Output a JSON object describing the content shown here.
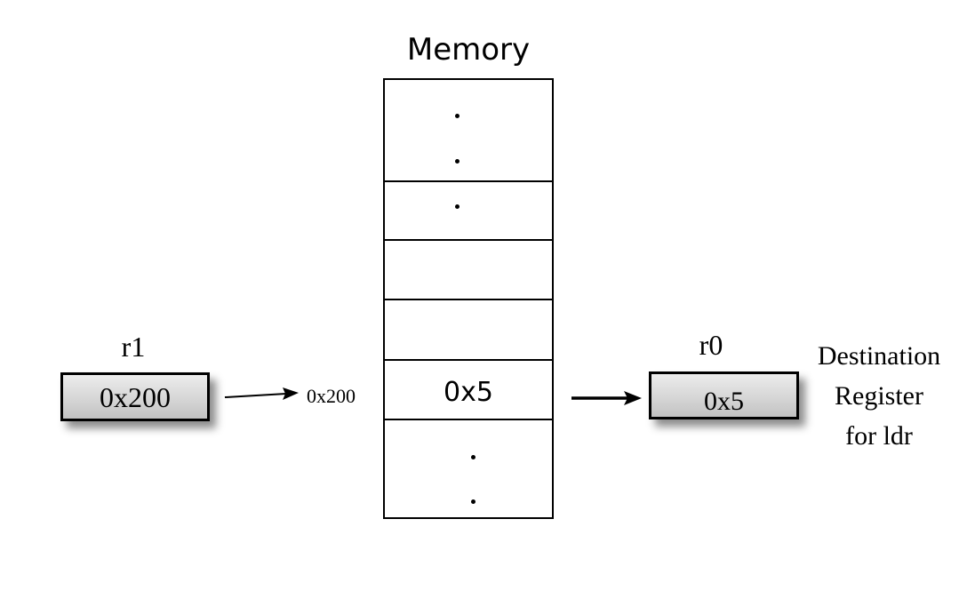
{
  "memory": {
    "title": "Memory",
    "highlighted_cell_value": "0x5"
  },
  "registers": {
    "r1": {
      "name": "r1",
      "value": "0x200"
    },
    "r0": {
      "name": "r0",
      "value": "0x5"
    }
  },
  "address_label": "0x200",
  "destination_label": [
    "Destination",
    "Register",
    "for ldr"
  ]
}
